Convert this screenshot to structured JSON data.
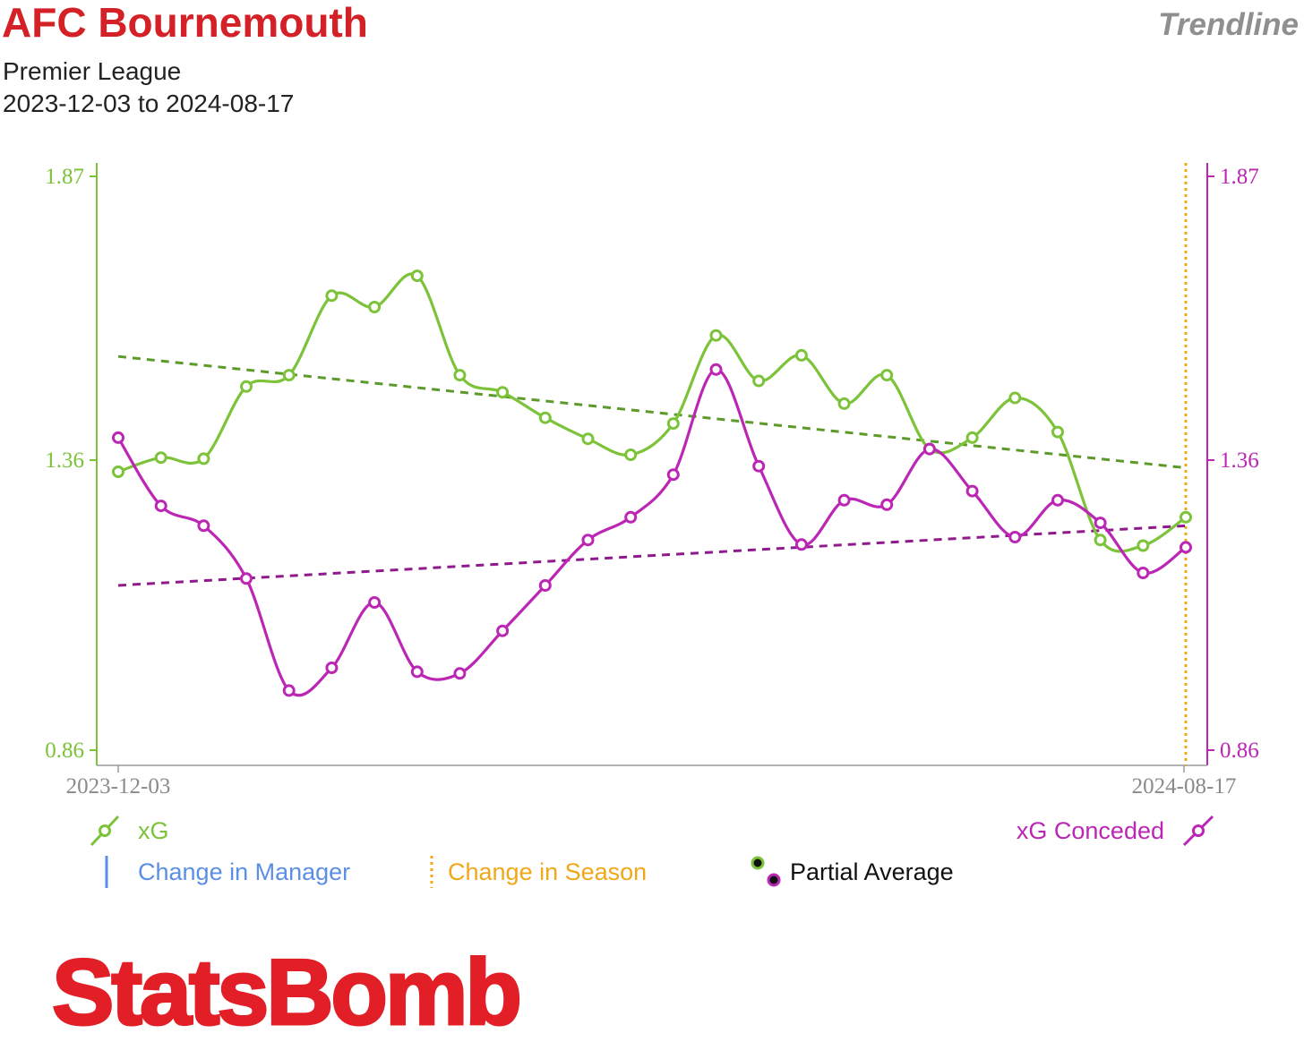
{
  "header": {
    "team": "AFC Bournemouth",
    "badge": "Trendline",
    "competition": "Premier League",
    "date_range": "2023-12-03 to 2024-08-17"
  },
  "legend": {
    "xg": "xG",
    "xg_conceded": "xG Conceded",
    "manager": "Change in Manager",
    "season": "Change in Season",
    "partial": "Partial Average"
  },
  "colors": {
    "xg": "#7cc33a",
    "xg_conceded": "#bb27b4",
    "xg_trend": "#5c9a2a",
    "xg_conceded_trend": "#8e1a8c",
    "manager": "#5b8fe6",
    "season": "#f0a818",
    "brand": "#d42027"
  },
  "logo": "StatsBomb",
  "chart_data": {
    "type": "line",
    "x_start_label": "2023-12-03",
    "x_end_label": "2024-08-17",
    "y_left": {
      "ticks": [
        "1.87",
        "1.36",
        "0.86"
      ],
      "range": [
        0.86,
        1.87
      ]
    },
    "y_right": {
      "ticks": [
        "1.87",
        "1.36",
        "0.86"
      ],
      "range": [
        0.86,
        1.87
      ]
    },
    "series": [
      {
        "name": "xG",
        "values": [
          1.35,
          1.375,
          1.373,
          1.5,
          1.52,
          1.66,
          1.64,
          1.695,
          1.52,
          1.49,
          1.445,
          1.408,
          1.38,
          1.435,
          1.59,
          1.51,
          1.555,
          1.47,
          1.52,
          1.39,
          1.41,
          1.48,
          1.42,
          1.23,
          1.22,
          1.27
        ]
      },
      {
        "name": "xG Conceded",
        "values": [
          1.41,
          1.29,
          1.255,
          1.162,
          0.965,
          1.005,
          1.12,
          0.998,
          0.995,
          1.07,
          1.15,
          1.23,
          1.27,
          1.345,
          1.53,
          1.36,
          1.222,
          1.3,
          1.292,
          1.39,
          1.316,
          1.235,
          1.3,
          1.26,
          1.172,
          1.217
        ]
      }
    ],
    "trendlines": [
      {
        "series": "xG",
        "start": 1.553,
        "end": 1.357
      },
      {
        "series": "xG Conceded",
        "start": 1.15,
        "end": 1.255
      }
    ]
  }
}
